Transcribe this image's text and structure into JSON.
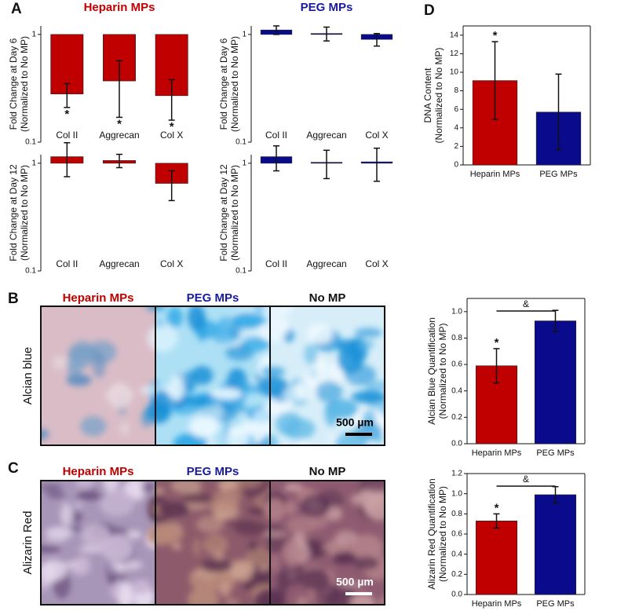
{
  "panel_labels": [
    "A",
    "B",
    "C",
    "D"
  ],
  "image_rows": [
    {
      "label": "Alcian blue",
      "columns": [
        "Heparin MPs",
        "PEG MPs",
        "No MP"
      ],
      "column_colors": [
        "#c00000",
        "#1a1a9c",
        "#111111"
      ],
      "scale_bar": "500 µm"
    },
    {
      "label": "Alizarin Red",
      "columns": [
        "Heparin MPs",
        "PEG MPs",
        "No MP"
      ],
      "column_colors": [
        "#c00000",
        "#1a1a9c",
        "#111111"
      ],
      "scale_bar": "500 µm"
    }
  ],
  "chart_data": [
    {
      "type": "bar",
      "title": "Heparin MPs",
      "title_color": "#c00000",
      "ylabel": [
        "Fold Change at Day 6",
        "(Normalized to No MP)"
      ],
      "categories": [
        "Col II",
        "Aggrecan",
        "Col X"
      ],
      "values": [
        0.28,
        0.37,
        0.27
      ],
      "errors": [
        0.07,
        0.2,
        0.11
      ],
      "value_annotations": [
        "*",
        "*",
        "*"
      ],
      "color": "#c00000",
      "yscale": "log",
      "ylim": [
        0.1,
        1.2
      ],
      "yticks": [
        0.1,
        1
      ]
    },
    {
      "type": "bar",
      "title": "PEG MPs",
      "title_color": "#1a1a9c",
      "ylabel": [
        "Fold Change at Day 6",
        "(Normalized to No MP)"
      ],
      "categories": [
        "Col II",
        "Aggrecan",
        "Col X"
      ],
      "values": [
        1.1,
        1.02,
        0.9
      ],
      "errors": [
        0.1,
        0.15,
        0.12
      ],
      "color": "#0a0a8c",
      "yscale": "log",
      "ylim": [
        0.1,
        1.2
      ],
      "yticks": [
        0.1,
        1
      ]
    },
    {
      "type": "bar",
      "ylabel": [
        "Fold Change at Day 12",
        "(Normalized to No MP)"
      ],
      "categories": [
        "Col II",
        "Aggrecan",
        "Col X"
      ],
      "values": [
        1.15,
        1.06,
        0.65
      ],
      "errors": [
        0.4,
        0.15,
        0.2
      ],
      "color": "#c00000",
      "yscale": "log",
      "ylim": [
        0.1,
        1.2
      ],
      "yticks": [
        0.1,
        1
      ]
    },
    {
      "type": "bar",
      "ylabel": [
        "Fold Change at Day 12",
        "(Normalized to No MP)"
      ],
      "categories": [
        "Col II",
        "Aggrecan",
        "Col X"
      ],
      "values": [
        1.15,
        1.02,
        1.03
      ],
      "errors": [
        0.3,
        0.3,
        0.35
      ],
      "color": "#0a0a8c",
      "yscale": "log",
      "ylim": [
        0.1,
        1.2
      ],
      "yticks": [
        0.1,
        1
      ]
    },
    {
      "type": "bar",
      "ylabel": [
        "DNA Content",
        "(Normalized to No MP)"
      ],
      "categories": [
        "Heparin MPs",
        "PEG MPs"
      ],
      "values": [
        9.1,
        5.7
      ],
      "errors": [
        4.2,
        4.1
      ],
      "value_annotations": [
        "*",
        null
      ],
      "colors": [
        "#c00000",
        "#0a0a8c"
      ],
      "ylim": [
        0,
        15
      ],
      "yticks": [
        0,
        2,
        4,
        6,
        8,
        10,
        12,
        14
      ]
    },
    {
      "type": "bar",
      "ylabel": [
        "Alcian Blue Quantification",
        "(Normalized to No MP)"
      ],
      "categories": [
        "Heparin MPs",
        "PEG MPs"
      ],
      "values": [
        0.59,
        0.93
      ],
      "errors": [
        0.13,
        0.08
      ],
      "value_annotations": [
        "*",
        null
      ],
      "comparison": "&",
      "colors": [
        "#c00000",
        "#0a0a8c"
      ],
      "ylim": [
        0,
        1.1
      ],
      "yticks": [
        {
          "value": 0,
          "label": "0.0"
        },
        0.2,
        0.4,
        0.6,
        0.8,
        {
          "value": 1,
          "label": "1.0"
        }
      ]
    },
    {
      "type": "bar",
      "ylabel": [
        "Alizarin Red Quantification",
        "(Normalized to No MP)"
      ],
      "categories": [
        "Heparin MPs",
        "PEG MPs"
      ],
      "values": [
        0.73,
        0.99
      ],
      "errors": [
        0.07,
        0.08
      ],
      "value_annotations": [
        "*",
        null
      ],
      "comparison": "&",
      "colors": [
        "#c00000",
        "#0a0a8c"
      ],
      "ylim": [
        0,
        1.2
      ],
      "yticks": [
        {
          "value": 0,
          "label": "0.0"
        },
        0.2,
        0.4,
        0.6,
        0.8,
        {
          "value": 1,
          "label": "1.0"
        },
        1.2
      ]
    }
  ]
}
